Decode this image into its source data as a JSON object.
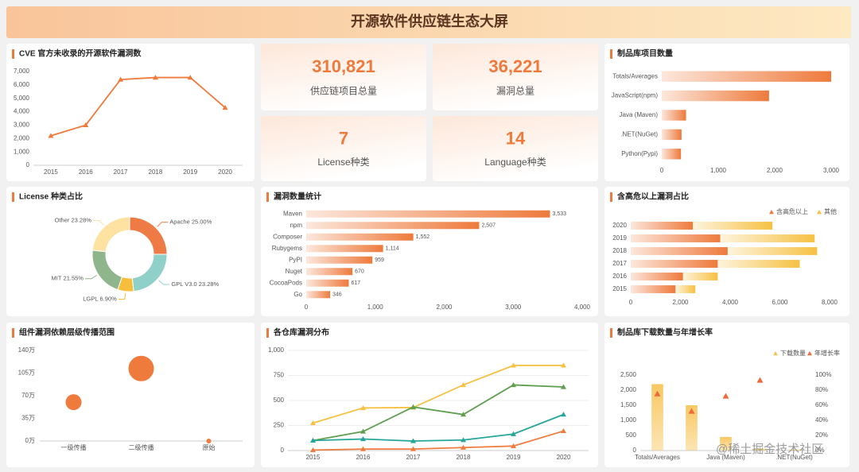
{
  "title": "开源软件供应链生态大屏",
  "watermark": "@稀土掘金技术社区",
  "kpis": [
    {
      "value": "310,821",
      "label": "供应链项目总量"
    },
    {
      "value": "36,221",
      "label": "漏洞总量"
    },
    {
      "value": "7",
      "label": "License种类"
    },
    {
      "value": "14",
      "label": "Language种类"
    }
  ],
  "chart_data": [
    {
      "type": "line",
      "title": "CVE 官方未收录的开源软件漏洞数",
      "categories": [
        "2015",
        "2016",
        "2017",
        "2018",
        "2019",
        "2020"
      ],
      "series": [
        {
          "color": "#ee7a3c",
          "values": [
            2200,
            3000,
            6400,
            6550,
            6550,
            4300
          ]
        }
      ],
      "ylim": [
        0,
        7000
      ],
      "yticks": [
        0,
        {
          "value": 1000,
          "label": "1,000"
        },
        {
          "value": 2000,
          "label": "2,000"
        },
        {
          "value": 3000,
          "label": "3,000"
        },
        {
          "value": 4000,
          "label": "4,000"
        },
        {
          "value": 5000,
          "label": "5,000"
        },
        {
          "value": 6000,
          "label": "6,000"
        },
        {
          "value": 7000,
          "label": "7,000"
        }
      ],
      "grid": false
    },
    {
      "type": "bar",
      "orientation": "horizontal",
      "title": "制品库项目数量",
      "categories": [
        "Totals/Averages",
        "JavaScript(npm)",
        "Java (Maven)",
        ".NET(NuGet)",
        "Python(Pypi)"
      ],
      "values": [
        3000,
        1900,
        430,
        350,
        340
      ],
      "color": "#ee7a3c",
      "xlim": [
        0,
        3000
      ],
      "xticks": [
        0,
        {
          "value": 1000,
          "label": "1,000"
        },
        {
          "value": 2000,
          "label": "2,000"
        },
        {
          "value": 3000,
          "label": "3,000"
        }
      ],
      "grid": false
    },
    {
      "type": "donut",
      "title": "License 种类占比",
      "categories": [
        "Apache",
        "GPL V3.0",
        "LGPL",
        "MIT",
        "Other"
      ],
      "values": [
        25,
        23.28,
        6.9,
        21.55,
        23.28
      ],
      "value_labels": [
        "25.00%",
        "23.28%",
        "6.90%",
        "21.55%",
        "23.28%"
      ],
      "colors": [
        "#ee7b46",
        "#8fd1c9",
        "#f6be3c",
        "#8fb58c",
        "#fde2a2"
      ]
    },
    {
      "type": "bar",
      "orientation": "horizontal",
      "title": "漏洞数量统计",
      "categories": [
        "Maven",
        "npm",
        "Composer",
        "Rubygems",
        "PyPI",
        "Nuget",
        "CocoaPods",
        "Go"
      ],
      "values": [
        3533,
        2507,
        1552,
        1114,
        959,
        670,
        617,
        346
      ],
      "value_labels": [
        "3,533",
        "2,507",
        "1,552",
        "1,114",
        "959",
        "670",
        "617",
        "346"
      ],
      "color": "#ee7a3c",
      "xlim": [
        0,
        4000
      ],
      "xticks": [
        0,
        {
          "value": 1000,
          "label": "1,000"
        },
        {
          "value": 2000,
          "label": "2,000"
        },
        {
          "value": 3000,
          "label": "3,000"
        },
        {
          "value": 4000,
          "label": "4,000"
        }
      ],
      "grid": false
    },
    {
      "type": "bar",
      "orientation": "horizontal",
      "stacked": true,
      "title": "含高危以上漏洞占比",
      "categories": [
        "2020",
        "2019",
        "2018",
        "2017",
        "2016",
        "2015"
      ],
      "series": [
        {
          "name": "含高危以上",
          "color": "#ee7a3c",
          "values": [
            2500,
            3600,
            3900,
            3500,
            2100,
            1800
          ]
        },
        {
          "name": "其他",
          "color": "#f6c143",
          "values": [
            3200,
            3800,
            3600,
            3300,
            1400,
            800
          ]
        }
      ],
      "xlim": [
        0,
        8000
      ],
      "xticks": [
        0,
        {
          "value": 2000,
          "label": "2,000"
        },
        {
          "value": 4000,
          "label": "4,000"
        },
        {
          "value": 6000,
          "label": "6,000"
        },
        {
          "value": 8000,
          "label": "8,000"
        }
      ],
      "grid": false,
      "legend": "top-right"
    },
    {
      "type": "bubble",
      "title": "组件漏洞依赖层级传播范围",
      "categories": [
        "一级传播",
        "二级传播",
        "原始"
      ],
      "values": [
        60,
        112,
        0
      ],
      "sizes": [
        100,
        256,
        9
      ],
      "color": "#ee7a3c",
      "ylim": [
        0,
        140
      ],
      "yticks": [
        {
          "value": 0,
          "label": "0万"
        },
        {
          "value": 35,
          "label": "35万"
        },
        {
          "value": 70,
          "label": "70万"
        },
        {
          "value": 105,
          "label": "105万"
        },
        {
          "value": 140,
          "label": "140万"
        }
      ],
      "grid": false
    },
    {
      "type": "line",
      "title": "各仓库漏洞分布",
      "categories": [
        "2015",
        "2016",
        "2017",
        "2018",
        "2019",
        "2020"
      ],
      "series": [
        {
          "color": "#f6c143",
          "values": [
            275,
            425,
            430,
            655,
            850,
            850
          ]
        },
        {
          "color": "#5f9e4f",
          "values": [
            100,
            190,
            435,
            360,
            655,
            635
          ]
        },
        {
          "color": "#26a69a",
          "values": [
            100,
            115,
            95,
            105,
            165,
            360
          ]
        },
        {
          "color": "#f07b3f",
          "values": [
            5,
            15,
            15,
            30,
            45,
            195
          ]
        }
      ],
      "ylim": [
        0,
        1000
      ],
      "yticks": [
        0,
        250,
        500,
        750,
        {
          "value": 1000,
          "label": "1,000"
        }
      ],
      "grid": true
    },
    {
      "type": "combo",
      "title": "制品库下载数量与年增长率",
      "categories": [
        "Totals/Averages",
        null,
        "Java (Maven)",
        null,
        ".NET(NuGet)"
      ],
      "series": [
        {
          "name": "下载数量",
          "type": "bar",
          "color": "#f8c55a",
          "values": [
            2200,
            1500,
            450,
            60,
            30
          ]
        },
        {
          "name": "年增长率",
          "type": "scatter",
          "axis": "y2",
          "color": "#ee6a3c",
          "values": [
            75,
            52,
            72,
            93,
            null
          ]
        }
      ],
      "ylim": [
        0,
        2500
      ],
      "yticks": [
        0,
        {
          "value": 500,
          "label": "500"
        },
        {
          "value": 1000,
          "label": "1,000"
        },
        {
          "value": 1500,
          "label": "1,500"
        },
        {
          "value": 2000,
          "label": "2,000"
        },
        {
          "value": 2500,
          "label": "2,500"
        }
      ],
      "y2lim": [
        0,
        100
      ],
      "y2ticks": [
        {
          "value": 0,
          "label": "0%"
        },
        {
          "value": 20,
          "label": "20%"
        },
        {
          "value": 40,
          "label": "40%"
        },
        {
          "value": 60,
          "label": "60%"
        },
        {
          "value": 80,
          "label": "80%"
        },
        {
          "value": 100,
          "label": "100%"
        }
      ],
      "legend": "top-right"
    }
  ]
}
